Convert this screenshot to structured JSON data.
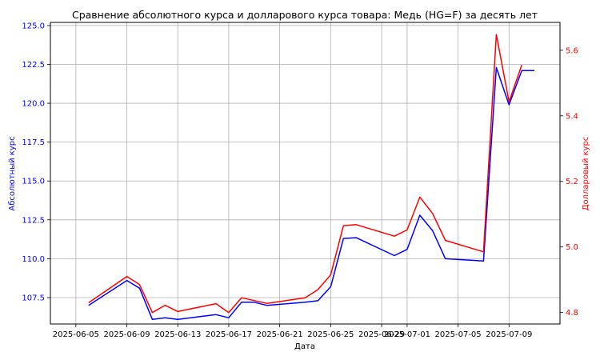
{
  "chart_data": {
    "type": "line",
    "title": "Сравнение абсолютного курса и долларового курса товара: Медь (HG=F) за десять лет",
    "xlabel": "Дата",
    "ylabel_left": "Абсолютный курс",
    "ylabel_right": "Долларовый курс",
    "grid": true,
    "x_ticks": [
      "2025-06-05",
      "2025-06-09",
      "2025-06-13",
      "2025-06-17",
      "2025-06-21",
      "2025-06-25",
      "2025-06-29",
      "2025-07-01",
      "2025-07-05",
      "2025-07-09"
    ],
    "x_range": [
      "2025-06-03",
      "2025-07-13"
    ],
    "y_left_ticks": [
      "107.5",
      "110.0",
      "112.5",
      "115.0",
      "117.5",
      "120.0",
      "122.5",
      "125.0"
    ],
    "y_left_range": [
      105.8,
      125.2
    ],
    "y_right_ticks": [
      "4.8",
      "5.0",
      "5.2",
      "5.4",
      "5.6"
    ],
    "y_right_range": [
      4.765,
      5.685
    ],
    "colors": {
      "left": "#0000ff",
      "right": "#ff0000"
    },
    "series": [
      {
        "axis": "left",
        "color": "#0000ff",
        "points": [
          [
            "2025-06-06",
            107.0
          ],
          [
            "2025-06-09",
            108.6
          ],
          [
            "2025-06-10",
            108.1
          ],
          [
            "2025-06-11",
            106.1
          ],
          [
            "2025-06-12",
            106.2
          ],
          [
            "2025-06-13",
            106.1
          ],
          [
            "2025-06-16",
            106.4
          ],
          [
            "2025-06-17",
            106.2
          ],
          [
            "2025-06-18",
            107.2
          ],
          [
            "2025-06-19",
            107.2
          ],
          [
            "2025-06-20",
            107.0
          ],
          [
            "2025-06-23",
            107.2
          ],
          [
            "2025-06-24",
            107.3
          ],
          [
            "2025-06-25",
            108.2
          ],
          [
            "2025-06-26",
            111.3
          ],
          [
            "2025-06-27",
            111.35
          ],
          [
            "2025-06-30",
            110.2
          ],
          [
            "2025-07-01",
            110.6
          ],
          [
            "2025-07-02",
            112.8
          ],
          [
            "2025-07-03",
            111.8
          ],
          [
            "2025-07-04",
            110.0
          ],
          [
            "2025-07-07",
            109.85
          ],
          [
            "2025-07-08",
            122.3
          ],
          [
            "2025-07-09",
            119.9
          ],
          [
            "2025-07-10",
            122.1
          ],
          [
            "2025-07-11",
            122.1
          ]
        ]
      },
      {
        "axis": "right",
        "color": "#ff0000",
        "points": [
          [
            "2025-06-06",
            4.83
          ],
          [
            "2025-06-09",
            4.91
          ],
          [
            "2025-06-10",
            4.885
          ],
          [
            "2025-06-11",
            4.8
          ],
          [
            "2025-06-12",
            4.822
          ],
          [
            "2025-06-13",
            4.803
          ],
          [
            "2025-06-16",
            4.827
          ],
          [
            "2025-06-17",
            4.8
          ],
          [
            "2025-06-18",
            4.845
          ],
          [
            "2025-06-20",
            4.828
          ],
          [
            "2025-06-23",
            4.845
          ],
          [
            "2025-06-24",
            4.87
          ],
          [
            "2025-06-25",
            4.915
          ],
          [
            "2025-06-26",
            5.065
          ],
          [
            "2025-06-27",
            5.068
          ],
          [
            "2025-06-30",
            5.033
          ],
          [
            "2025-07-01",
            5.052
          ],
          [
            "2025-07-02",
            5.152
          ],
          [
            "2025-07-03",
            5.102
          ],
          [
            "2025-07-04",
            5.02
          ],
          [
            "2025-07-07",
            4.985
          ],
          [
            "2025-07-08",
            5.648
          ],
          [
            "2025-07-09",
            5.443
          ],
          [
            "2025-07-10",
            5.555
          ]
        ]
      }
    ]
  }
}
